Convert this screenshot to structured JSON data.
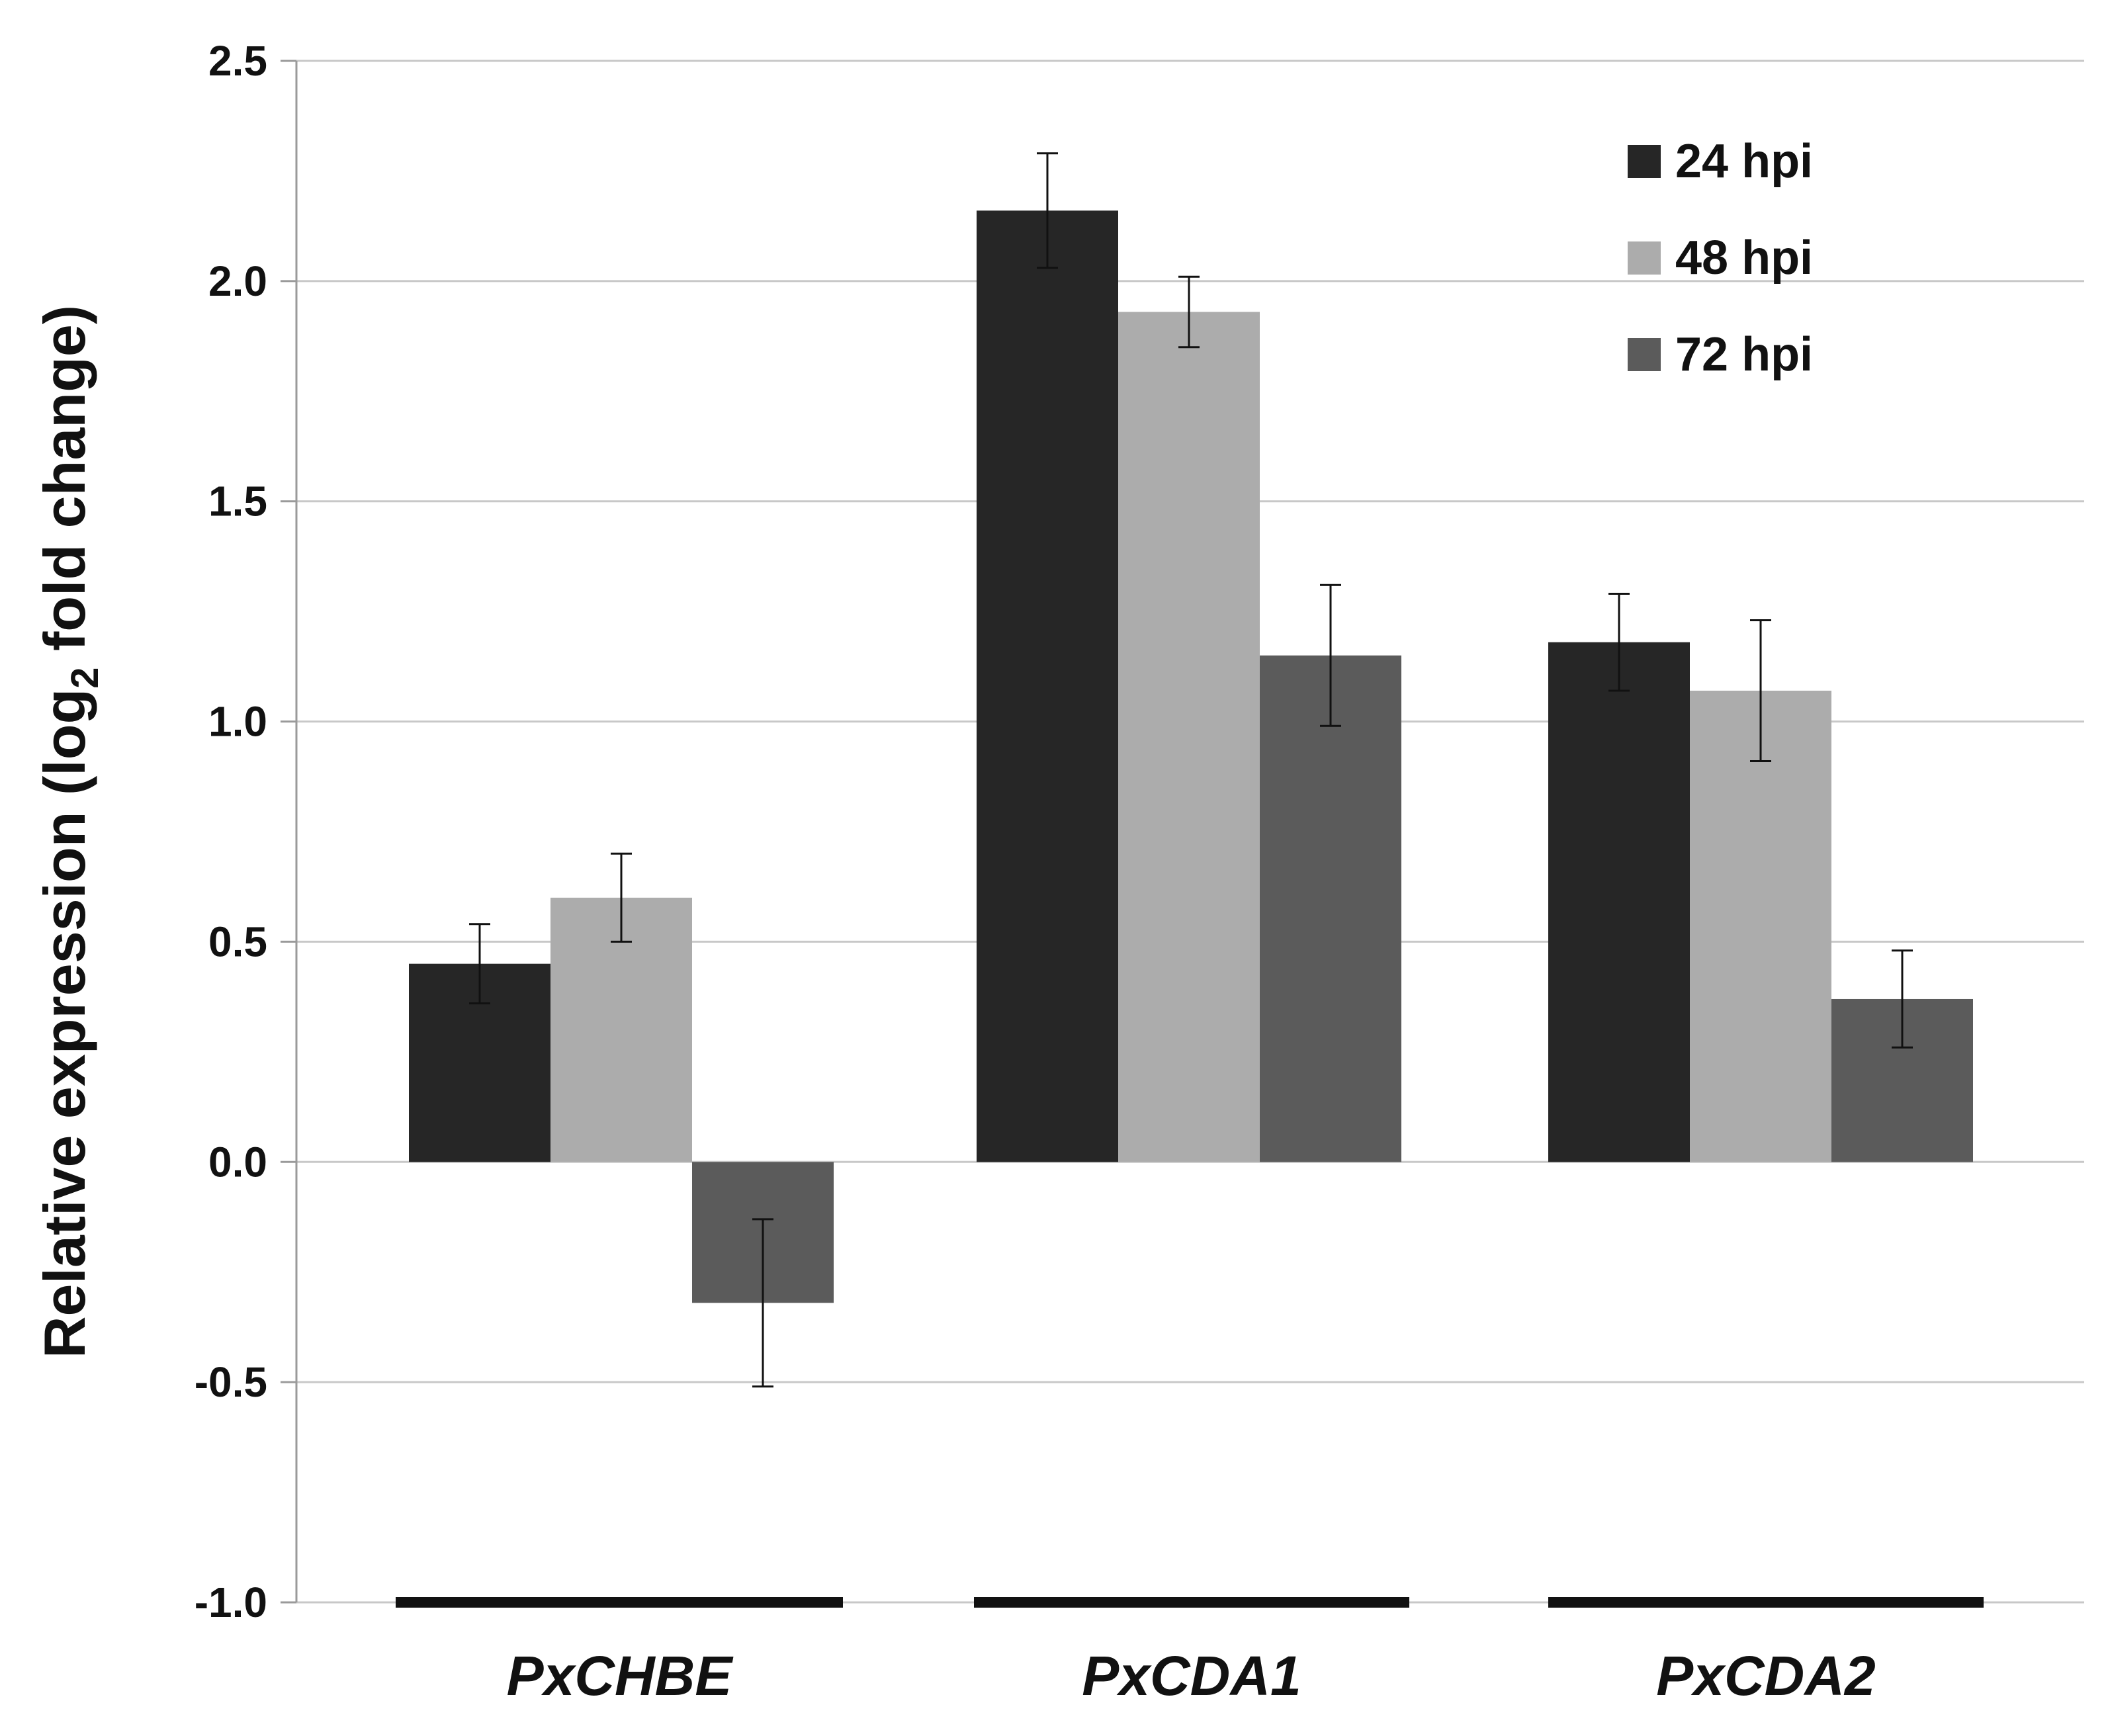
{
  "chart_data": {
    "type": "bar",
    "title": "",
    "xlabel": "",
    "ylabel_parts": [
      "Relative expression (log",
      "2",
      " fold change)"
    ],
    "categories": [
      "PxCHBE",
      "PxCDA1",
      "PxCDA2"
    ],
    "ylim": [
      -1.0,
      2.5
    ],
    "yticks": [
      -1.0,
      -0.5,
      0.0,
      0.5,
      1.0,
      1.5,
      2.0,
      2.5
    ],
    "ytick_labels": [
      "-1.0",
      "-0.5",
      "0.0",
      "0.5",
      "1.0",
      "1.5",
      "2.0",
      "2.5"
    ],
    "grid": true,
    "legend_position": "top-right",
    "series": [
      {
        "name": "24 hpi",
        "color": "#262626",
        "values": [
          0.45,
          2.16,
          1.18
        ],
        "errors": [
          0.09,
          0.13,
          0.11
        ]
      },
      {
        "name": "48 hpi",
        "color": "#acacac",
        "values": [
          0.6,
          1.93,
          1.07
        ],
        "errors": [
          0.1,
          0.08,
          0.16
        ]
      },
      {
        "name": "72 hpi",
        "color": "#5b5b5b",
        "values": [
          -0.32,
          1.15,
          0.37
        ],
        "errors": [
          0.19,
          0.16,
          0.11
        ]
      }
    ]
  }
}
